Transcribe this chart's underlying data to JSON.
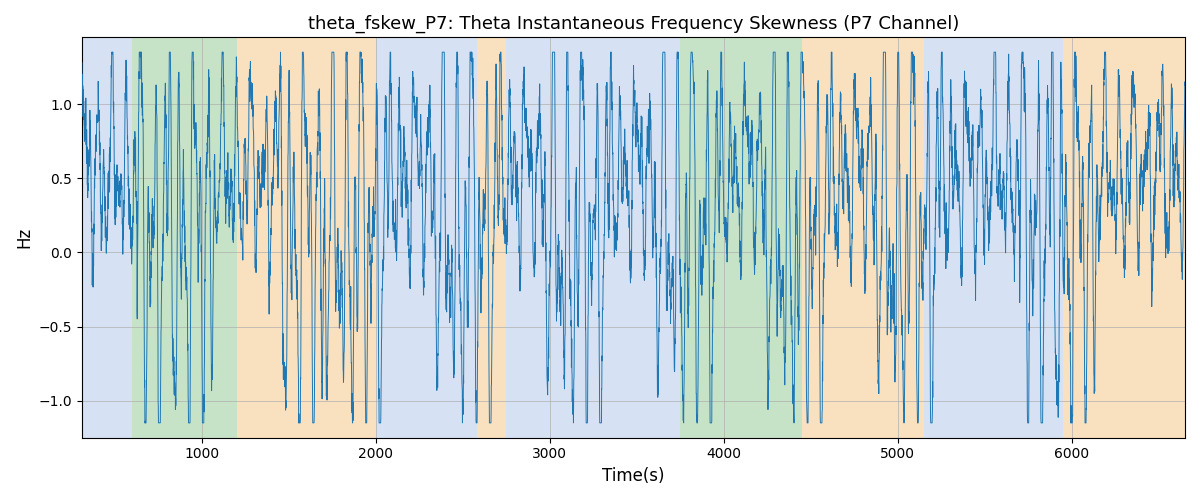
{
  "title": "theta_fskew_P7: Theta Instantaneous Frequency Skewness (P7 Channel)",
  "xlabel": "Time(s)",
  "ylabel": "Hz",
  "xlim": [
    310,
    6650
  ],
  "ylim": [
    -1.25,
    1.45
  ],
  "yticks": [
    -1.0,
    -0.5,
    0.0,
    0.5,
    1.0
  ],
  "xticks": [
    1000,
    2000,
    3000,
    4000,
    5000,
    6000
  ],
  "line_color": "#1f77b4",
  "line_width": 0.7,
  "background_color": "#ffffff",
  "grid_color": "#b0b0b0",
  "colored_bands": [
    {
      "xmin": 310,
      "xmax": 600,
      "color": "#aec6e8",
      "alpha": 0.5
    },
    {
      "xmin": 600,
      "xmax": 1200,
      "color": "#90c990",
      "alpha": 0.5
    },
    {
      "xmin": 1200,
      "xmax": 2000,
      "color": "#f5c580",
      "alpha": 0.5
    },
    {
      "xmin": 2000,
      "xmax": 2580,
      "color": "#aec6e8",
      "alpha": 0.5
    },
    {
      "xmin": 2580,
      "xmax": 2750,
      "color": "#f5c580",
      "alpha": 0.5
    },
    {
      "xmin": 2750,
      "xmax": 3750,
      "color": "#aec6e8",
      "alpha": 0.5
    },
    {
      "xmin": 3750,
      "xmax": 4450,
      "color": "#90c990",
      "alpha": 0.5
    },
    {
      "xmin": 4450,
      "xmax": 5150,
      "color": "#f5c580",
      "alpha": 0.5
    },
    {
      "xmin": 5150,
      "xmax": 5950,
      "color": "#aec6e8",
      "alpha": 0.5
    },
    {
      "xmin": 5950,
      "xmax": 6650,
      "color": "#f5c580",
      "alpha": 0.5
    }
  ],
  "figsize": [
    12.0,
    5.0
  ],
  "dpi": 100
}
